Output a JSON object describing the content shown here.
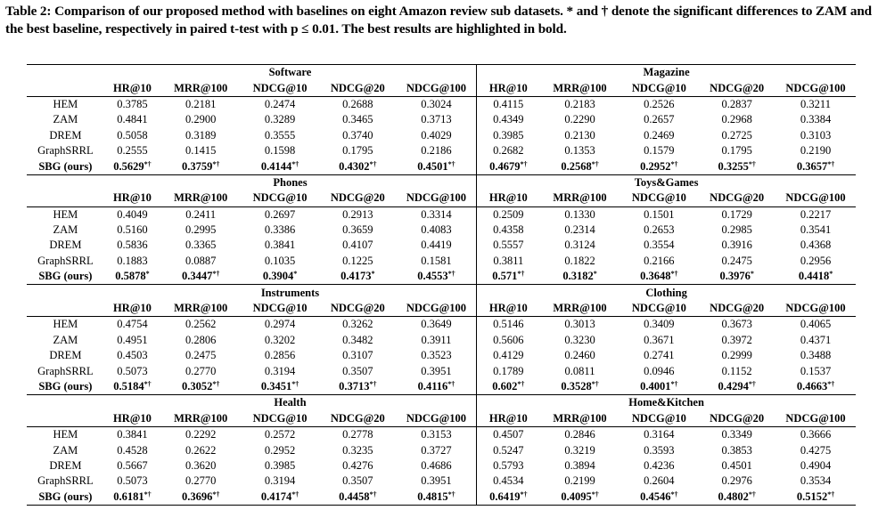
{
  "caption": "Table 2: Comparison of our proposed method with baselines on eight Amazon review sub datasets. * and † denote the significant differences to ZAM and the best baseline, respectively in paired t-test with p ≤ 0.01. The best results are highlighted in bold.",
  "metrics": [
    "HR@10",
    "MRR@100",
    "NDCG@10",
    "NDCG@20",
    "NDCG@100"
  ],
  "blocks": [
    {
      "left": {
        "name": "Software",
        "rows": [
          {
            "method": "HEM",
            "values": [
              "0.3785",
              "0.2181",
              "0.2474",
              "0.2688",
              "0.3024"
            ]
          },
          {
            "method": "ZAM",
            "values": [
              "0.4841",
              "0.2900",
              "0.3289",
              "0.3465",
              "0.3713"
            ]
          },
          {
            "method": "DREM",
            "values": [
              "0.5058",
              "0.3189",
              "0.3555",
              "0.3740",
              "0.4029"
            ]
          },
          {
            "method": "GraphSRRL",
            "values": [
              "0.2555",
              "0.1415",
              "0.1598",
              "0.1795",
              "0.2186"
            ]
          },
          {
            "method": "SBG (ours)",
            "values": [
              "0.5629",
              "0.3759",
              "0.4144",
              "0.4302",
              "0.4501"
            ],
            "marks": [
              "*†",
              "*†",
              "*†",
              "*†",
              "*†"
            ]
          }
        ]
      },
      "right": {
        "name": "Magazine",
        "rows": [
          {
            "method": "HEM",
            "values": [
              "0.4115",
              "0.2183",
              "0.2526",
              "0.2837",
              "0.3211"
            ]
          },
          {
            "method": "ZAM",
            "values": [
              "0.4349",
              "0.2290",
              "0.2657",
              "0.2968",
              "0.3384"
            ]
          },
          {
            "method": "DREM",
            "values": [
              "0.3985",
              "0.2130",
              "0.2469",
              "0.2725",
              "0.3103"
            ]
          },
          {
            "method": "GraphSRRL",
            "values": [
              "0.2682",
              "0.1353",
              "0.1579",
              "0.1795",
              "0.2190"
            ]
          },
          {
            "method": "SBG (ours)",
            "values": [
              "0.4679",
              "0.2568",
              "0.2952",
              "0.3255",
              "0.3657"
            ],
            "marks": [
              "*†",
              "*†",
              "*†",
              "*†",
              "*†"
            ]
          }
        ]
      }
    },
    {
      "left": {
        "name": "Phones",
        "rows": [
          {
            "method": "HEM",
            "values": [
              "0.4049",
              "0.2411",
              "0.2697",
              "0.2913",
              "0.3314"
            ]
          },
          {
            "method": "ZAM",
            "values": [
              "0.5160",
              "0.2995",
              "0.3386",
              "0.3659",
              "0.4083"
            ]
          },
          {
            "method": "DREM",
            "values": [
              "0.5836",
              "0.3365",
              "0.3841",
              "0.4107",
              "0.4419"
            ]
          },
          {
            "method": "GraphSRRL",
            "values": [
              "0.1883",
              "0.0887",
              "0.1035",
              "0.1225",
              "0.1581"
            ]
          },
          {
            "method": "SBG (ours)",
            "values": [
              "0.5878",
              "0.3447",
              "0.3904",
              "0.4173",
              "0.4553"
            ],
            "marks": [
              "*",
              "*†",
              "*",
              "*",
              "*†"
            ]
          }
        ]
      },
      "right": {
        "name": "Toys&Games",
        "rows": [
          {
            "method": "HEM",
            "values": [
              "0.2509",
              "0.1330",
              "0.1501",
              "0.1729",
              "0.2217"
            ]
          },
          {
            "method": "ZAM",
            "values": [
              "0.4358",
              "0.2314",
              "0.2653",
              "0.2985",
              "0.3541"
            ]
          },
          {
            "method": "DREM",
            "values": [
              "0.5557",
              "0.3124",
              "0.3554",
              "0.3916",
              "0.4368"
            ]
          },
          {
            "method": "GraphSRRL",
            "values": [
              "0.3811",
              "0.1822",
              "0.2166",
              "0.2475",
              "0.2956"
            ]
          },
          {
            "method": "SBG (ours)",
            "values": [
              "0.571",
              "0.3182",
              "0.3648",
              "0.3976",
              "0.4418"
            ],
            "marks": [
              "*†",
              "*",
              "*†",
              "*",
              "*"
            ]
          }
        ]
      }
    },
    {
      "left": {
        "name": "Instruments",
        "rows": [
          {
            "method": "HEM",
            "values": [
              "0.4754",
              "0.2562",
              "0.2974",
              "0.3262",
              "0.3649"
            ]
          },
          {
            "method": "ZAM",
            "values": [
              "0.4951",
              "0.2806",
              "0.3202",
              "0.3482",
              "0.3911"
            ]
          },
          {
            "method": "DREM",
            "values": [
              "0.4503",
              "0.2475",
              "0.2856",
              "0.3107",
              "0.3523"
            ]
          },
          {
            "method": "GraphSRRL",
            "values": [
              "0.5073",
              "0.2770",
              "0.3194",
              "0.3507",
              "0.3951"
            ]
          },
          {
            "method": "SBG (ours)",
            "values": [
              "0.5184",
              "0.3052",
              "0.3451",
              "0.3713",
              "0.4116"
            ],
            "marks": [
              "*†",
              "*†",
              "*†",
              "*†",
              "*†"
            ]
          }
        ]
      },
      "right": {
        "name": "Clothing",
        "rows": [
          {
            "method": "HEM",
            "values": [
              "0.5146",
              "0.3013",
              "0.3409",
              "0.3673",
              "0.4065"
            ]
          },
          {
            "method": "ZAM",
            "values": [
              "0.5606",
              "0.3230",
              "0.3671",
              "0.3972",
              "0.4371"
            ]
          },
          {
            "method": "DREM",
            "values": [
              "0.4129",
              "0.2460",
              "0.2741",
              "0.2999",
              "0.3488"
            ]
          },
          {
            "method": "GraphSRRL",
            "values": [
              "0.1789",
              "0.0811",
              "0.0946",
              "0.1152",
              "0.1537"
            ]
          },
          {
            "method": "SBG (ours)",
            "values": [
              "0.602",
              "0.3528",
              "0.4001",
              "0.4294",
              "0.4663"
            ],
            "marks": [
              "*†",
              "*†",
              "*†",
              "*†",
              "*†"
            ]
          }
        ]
      }
    },
    {
      "left": {
        "name": "Health",
        "rows": [
          {
            "method": "HEM",
            "values": [
              "0.3841",
              "0.2292",
              "0.2572",
              "0.2778",
              "0.3153"
            ]
          },
          {
            "method": "ZAM",
            "values": [
              "0.4528",
              "0.2622",
              "0.2952",
              "0.3235",
              "0.3727"
            ]
          },
          {
            "method": "DREM",
            "values": [
              "0.5667",
              "0.3620",
              "0.3985",
              "0.4276",
              "0.4686"
            ]
          },
          {
            "method": "GraphSRRL",
            "values": [
              "0.5073",
              "0.2770",
              "0.3194",
              "0.3507",
              "0.3951"
            ]
          },
          {
            "method": "SBG (ours)",
            "values": [
              "0.6181",
              "0.3696",
              "0.4174",
              "0.4458",
              "0.4815"
            ],
            "marks": [
              "*†",
              "*†",
              "*†",
              "*†",
              "*†"
            ]
          }
        ]
      },
      "right": {
        "name": "Home&Kitchen",
        "rows": [
          {
            "method": "HEM",
            "values": [
              "0.4507",
              "0.2846",
              "0.3164",
              "0.3349",
              "0.3666"
            ]
          },
          {
            "method": "ZAM",
            "values": [
              "0.5247",
              "0.3219",
              "0.3593",
              "0.3853",
              "0.4275"
            ]
          },
          {
            "method": "DREM",
            "values": [
              "0.5793",
              "0.3894",
              "0.4236",
              "0.4501",
              "0.4904"
            ]
          },
          {
            "method": "GraphSRRL",
            "values": [
              "0.4534",
              "0.2199",
              "0.2604",
              "0.2976",
              "0.3534"
            ]
          },
          {
            "method": "SBG (ours)",
            "values": [
              "0.6419",
              "0.4095",
              "0.4546",
              "0.4802",
              "0.5152"
            ],
            "marks": [
              "*†",
              "*†",
              "*†",
              "*†",
              "*†"
            ]
          }
        ]
      }
    }
  ]
}
